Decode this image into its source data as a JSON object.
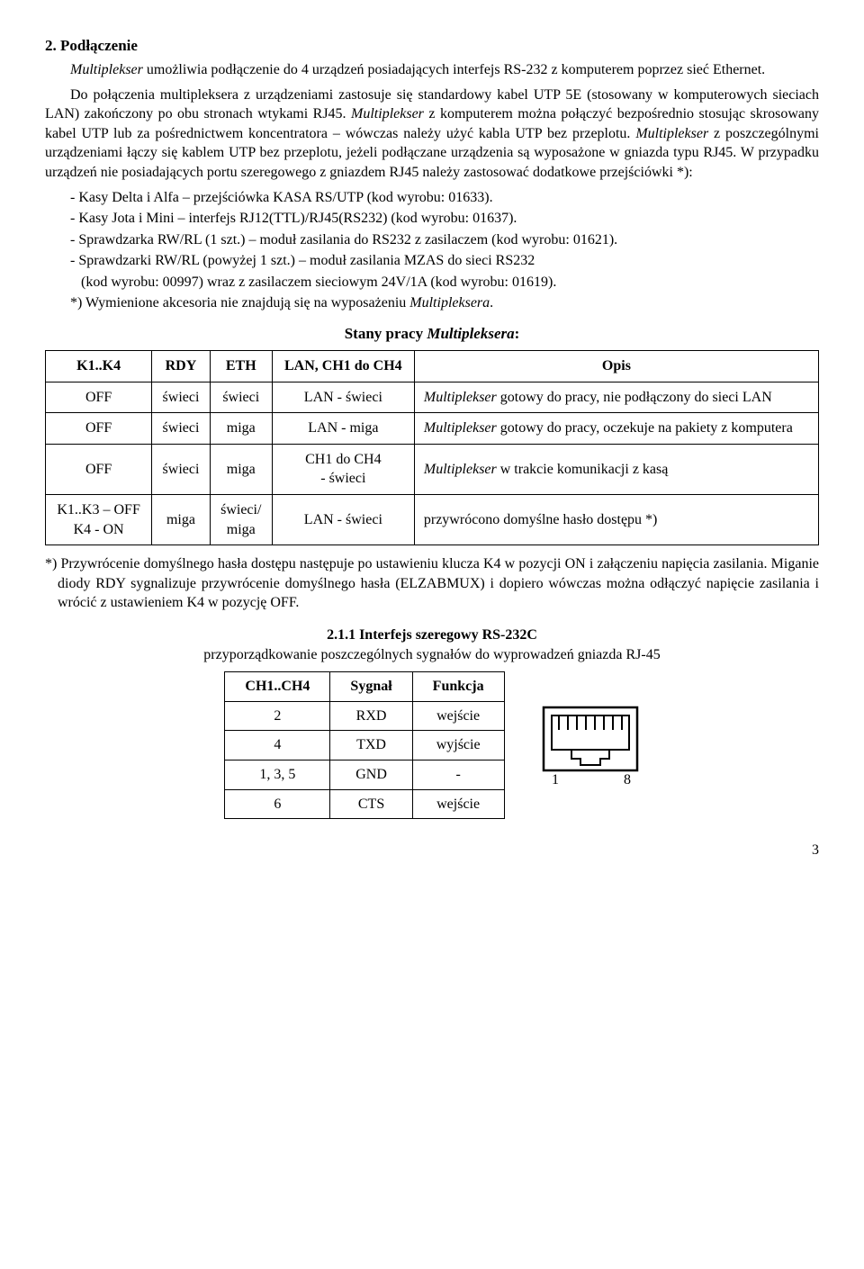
{
  "section": {
    "title": "2. Podłączenie",
    "p1": "Multiplekser umożliwia podłączenie do 4 urządzeń posiadających interfejs RS-232 z komputerem poprzez sieć Ethernet.",
    "p2": "Do połączenia multipleksera z urządzeniami zastosuje się standardowy kabel UTP 5E (stosowany w komputerowych sieciach LAN) zakończony po obu stronach wtykami RJ45. Multiplekser z komputerem można połączyć bezpośrednio stosując skrosowany kabel UTP lub za pośrednictwem koncentratora – wówczas należy użyć kabla UTP bez przeplotu. Multiplekser z poszczególnymi urządzeniami łączy się kablem UTP bez przeplotu, jeżeli podłączane urządzenia są wyposażone w gniazda typu RJ45. W przypadku urządzeń nie posiadających portu szeregowego z gniazdem RJ45 należy zastosować dodatkowe przejściówki *):",
    "b1": "- Kasy Delta i Alfa – przejściówka KASA RS/UTP (kod wyrobu: 01633).",
    "b2": "- Kasy Jota i Mini – interfejs RJ12(TTL)/RJ45(RS232) (kod wyrobu: 01637).",
    "b3": "- Sprawdzarka RW/RL (1 szt.) – moduł zasilania do RS232 z zasilaczem (kod wyrobu: 01621).",
    "b4": "- Sprawdzarki RW/RL (powyżej 1 szt.) – moduł zasilania MZAS do sieci RS232",
    "b4b": "(kod wyrobu: 00997) wraz z zasilaczem sieciowym 24V/1A (kod wyrobu: 01619).",
    "foot": "*) Wymienione akcesoria nie znajdują się na wyposażeniu Multipleksera."
  },
  "table1": {
    "title_pre": "Stany pracy ",
    "title_em": "Multipleksera",
    "title_post": ":",
    "headers": [
      "K1..K4",
      "RDY",
      "ETH",
      "LAN, CH1 do CH4",
      "Opis"
    ],
    "rows": [
      {
        "c": [
          "OFF",
          "świeci",
          "świeci",
          "LAN - świeci"
        ],
        "d_em": "Multiplekser",
        "d": " gotowy do pracy, nie podłączony do sieci LAN"
      },
      {
        "c": [
          "OFF",
          "świeci",
          "miga",
          "LAN - miga"
        ],
        "d_em": "Multiplekser",
        "d": " gotowy do pracy, oczekuje na pakiety z komputera"
      },
      {
        "c": [
          "OFF",
          "świeci",
          "miga",
          "CH1 do CH4\n- świeci"
        ],
        "d_em": "Multiplekser",
        "d": " w trakcie komunikacji z kasą"
      },
      {
        "c": [
          "K1..K3 – OFF\nK4 - ON",
          "miga",
          "świeci/\nmiga",
          "LAN - świeci"
        ],
        "d_em": "",
        "d": "przywrócono domyślne hasło dostępu *)"
      }
    ],
    "note": "*) Przywrócenie domyślnego hasła dostępu następuje po ustawieniu klucza K4 w pozycji ON i załączeniu napięcia zasilania. Miganie diody RDY sygnalizuje przywrócenie domyślnego hasła (ELZABMUX) i dopiero wówczas można odłączyć napięcie zasilania i wrócić z ustawieniem K4 w pozycję OFF."
  },
  "table2": {
    "title": "2.1.1 Interfejs szeregowy RS-232C",
    "desc": "przyporządkowanie poszczególnych sygnałów do wyprowadzeń gniazda RJ-45",
    "headers": [
      "CH1..CH4",
      "Sygnał",
      "Funkcja"
    ],
    "rows": [
      [
        "2",
        "RXD",
        "wejście"
      ],
      [
        "4",
        "TXD",
        "wyjście"
      ],
      [
        "1, 3, 5",
        "GND",
        "-"
      ],
      [
        "6",
        "CTS",
        "wejście"
      ]
    ],
    "pin1": "1",
    "pin8": "8"
  },
  "page": "3"
}
